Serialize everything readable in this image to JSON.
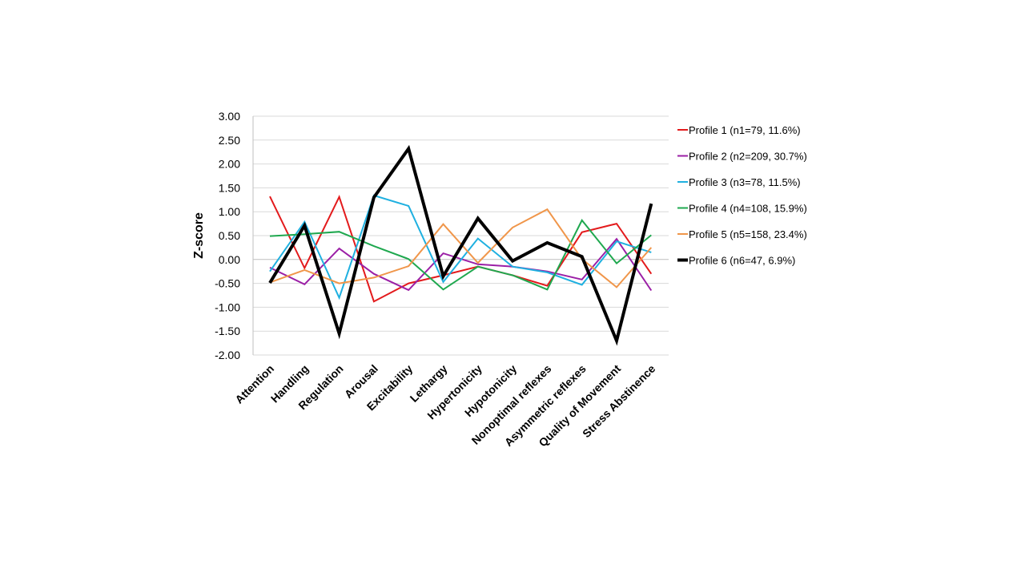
{
  "chart_data": {
    "type": "line",
    "title": "",
    "xlabel": "",
    "ylabel": "Z-score",
    "ylim": [
      -2.0,
      3.0
    ],
    "ytick_step": 0.5,
    "yticks": [
      "3.00",
      "2.50",
      "2.00",
      "1.50",
      "1.00",
      "0.50",
      "0.00",
      "-0.50",
      "-1.00",
      "-1.50",
      "-2.00"
    ],
    "grid": "horizontal",
    "legend_position": "right",
    "categories": [
      "Attention",
      "Handling",
      "Regulation",
      "Arousal",
      "Excitability",
      "Lethargy",
      "Hypertonicity",
      "Hypotonicity",
      "Nonoptimal reflexes",
      "Asymmetric reflexes",
      "Quality of Movement",
      "Stress Abstinence"
    ],
    "series": [
      {
        "name": "Profile 1 (n1=79, 11.6%)",
        "color": "#e31a1c",
        "width": 2,
        "values": [
          1.32,
          -0.18,
          1.31,
          -0.88,
          -0.5,
          -0.33,
          -0.15,
          -0.33,
          -0.55,
          0.57,
          0.75,
          -0.3
        ]
      },
      {
        "name": "Profile 2 (n2=209, 30.7%)",
        "color": "#9b1fa6",
        "width": 2,
        "values": [
          -0.17,
          -0.52,
          0.23,
          -0.3,
          -0.64,
          0.13,
          -0.1,
          -0.15,
          -0.25,
          -0.42,
          0.43,
          -0.65
        ]
      },
      {
        "name": "Profile 3 (n3=78, 11.5%)",
        "color": "#1fb0e0",
        "width": 2,
        "values": [
          -0.25,
          0.79,
          -0.8,
          1.34,
          1.12,
          -0.47,
          0.44,
          -0.15,
          -0.27,
          -0.53,
          0.38,
          0.15
        ]
      },
      {
        "name": "Profile 4 (n4=108, 15.9%)",
        "color": "#1fa84f",
        "width": 2,
        "values": [
          0.49,
          0.53,
          0.58,
          0.28,
          0.01,
          -0.63,
          -0.15,
          -0.33,
          -0.63,
          0.82,
          -0.08,
          0.51
        ]
      },
      {
        "name": "Profile 5 (n5=158, 23.4%)",
        "color": "#f0964a",
        "width": 2,
        "values": [
          -0.48,
          -0.22,
          -0.5,
          -0.38,
          -0.14,
          0.74,
          -0.07,
          0.67,
          1.05,
          0.01,
          -0.58,
          0.25
        ]
      },
      {
        "name": "Profile 6 (n6=47, 6.9%)",
        "color": "#000000",
        "width": 4,
        "values": [
          -0.49,
          0.71,
          -1.55,
          1.3,
          2.32,
          -0.35,
          0.86,
          -0.03,
          0.35,
          0.06,
          -1.7,
          1.17
        ]
      }
    ]
  }
}
